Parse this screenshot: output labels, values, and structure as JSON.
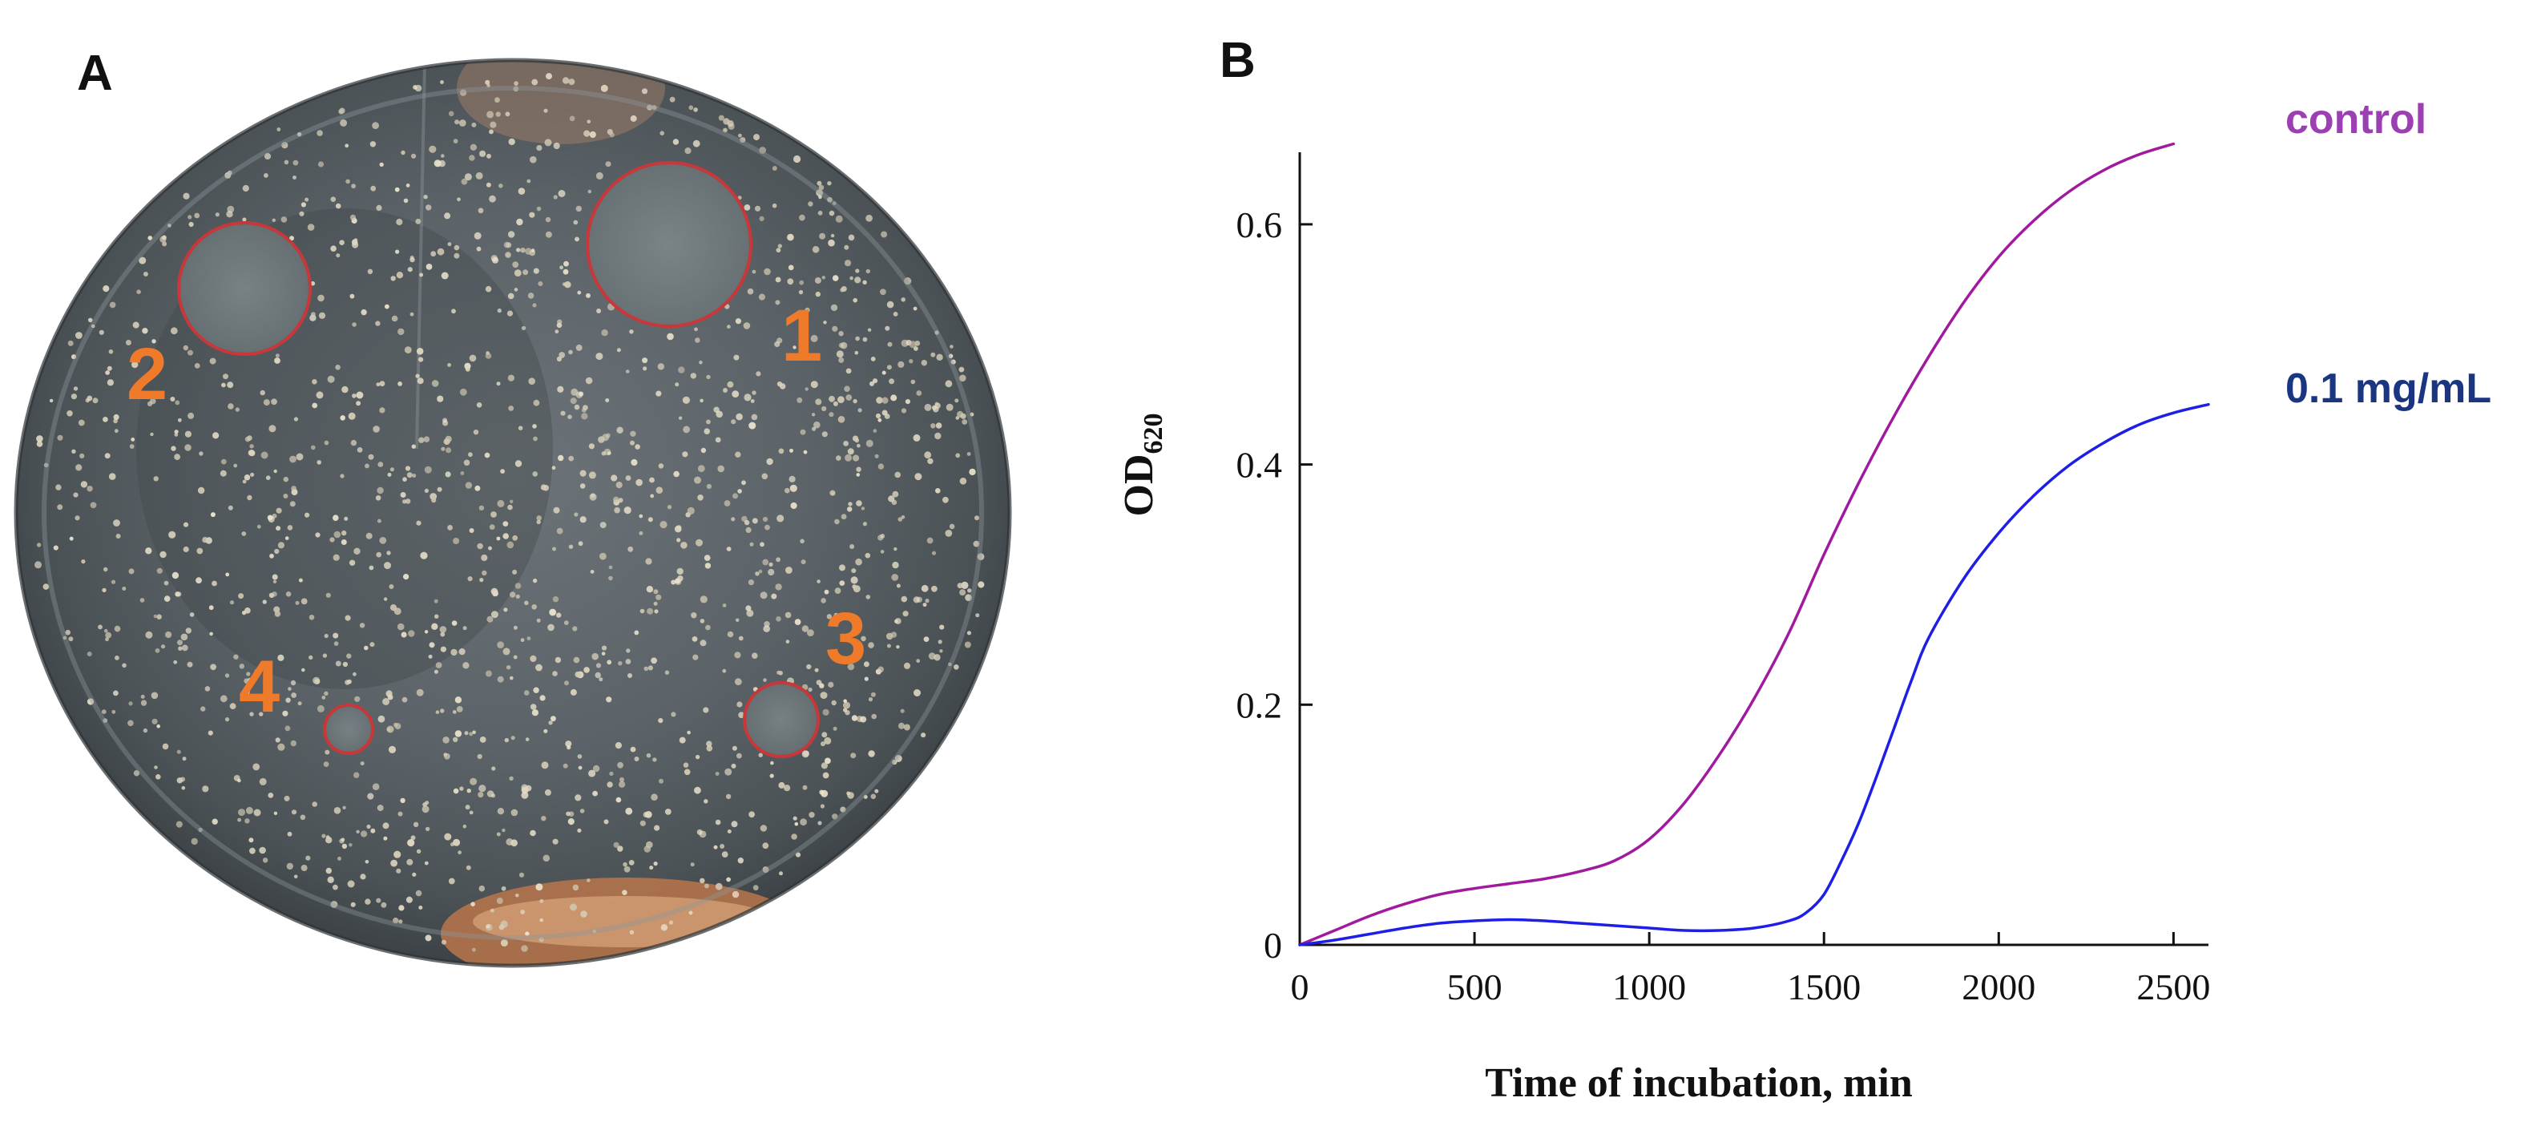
{
  "panel_a": {
    "letter": "A",
    "zones": [
      {
        "label": "1"
      },
      {
        "label": "2"
      },
      {
        "label": "3"
      },
      {
        "label": "4"
      }
    ],
    "colors": {
      "zone_ring": "#c8383a",
      "zone_label": "#ef7a2a"
    }
  },
  "panel_b": {
    "letter": "B"
  },
  "chart_data": {
    "type": "line",
    "title": "",
    "xlabel": "Time of incubation, min",
    "ylabel_main": "OD",
    "ylabel_sub": "620",
    "xlim": [
      0,
      2600
    ],
    "ylim": [
      0,
      0.66
    ],
    "xticks": [
      0,
      500,
      1000,
      1500,
      2000,
      2500
    ],
    "xtick_labels": [
      "0",
      "500",
      "1000",
      "1500",
      "2000",
      "2500"
    ],
    "yticks": [
      0,
      0.2,
      0.4,
      0.6
    ],
    "ytick_labels": [
      "0",
      "0.2",
      "0.4",
      "0.6"
    ],
    "grid": false,
    "series": [
      {
        "name": "control",
        "color": "#a0199e",
        "label_color": "#9b3fb3",
        "x": [
          0,
          100,
          200,
          300,
          400,
          500,
          600,
          700,
          800,
          900,
          1000,
          1100,
          1200,
          1300,
          1400,
          1500,
          1600,
          1700,
          1800,
          1900,
          2000,
          2100,
          2200,
          2300,
          2400,
          2500
        ],
        "y": [
          0,
          0.012,
          0.024,
          0.034,
          0.042,
          0.047,
          0.051,
          0.055,
          0.061,
          0.07,
          0.088,
          0.118,
          0.158,
          0.205,
          0.26,
          0.325,
          0.385,
          0.44,
          0.49,
          0.535,
          0.573,
          0.603,
          0.627,
          0.645,
          0.658,
          0.667
        ]
      },
      {
        "name": "0.1 mg/mL",
        "color": "#1e1ee6",
        "label_color": "#1b3680",
        "x": [
          0,
          100,
          200,
          300,
          400,
          500,
          600,
          700,
          800,
          900,
          1000,
          1100,
          1200,
          1300,
          1400,
          1450,
          1500,
          1550,
          1600,
          1650,
          1700,
          1750,
          1800,
          1900,
          2000,
          2100,
          2200,
          2300,
          2400,
          2500,
          2600
        ],
        "y": [
          0,
          0.004,
          0.009,
          0.014,
          0.018,
          0.02,
          0.021,
          0.02,
          0.018,
          0.016,
          0.014,
          0.012,
          0.012,
          0.014,
          0.02,
          0.027,
          0.042,
          0.07,
          0.102,
          0.14,
          0.18,
          0.22,
          0.256,
          0.305,
          0.343,
          0.374,
          0.399,
          0.418,
          0.433,
          0.443,
          0.45
        ]
      }
    ]
  }
}
